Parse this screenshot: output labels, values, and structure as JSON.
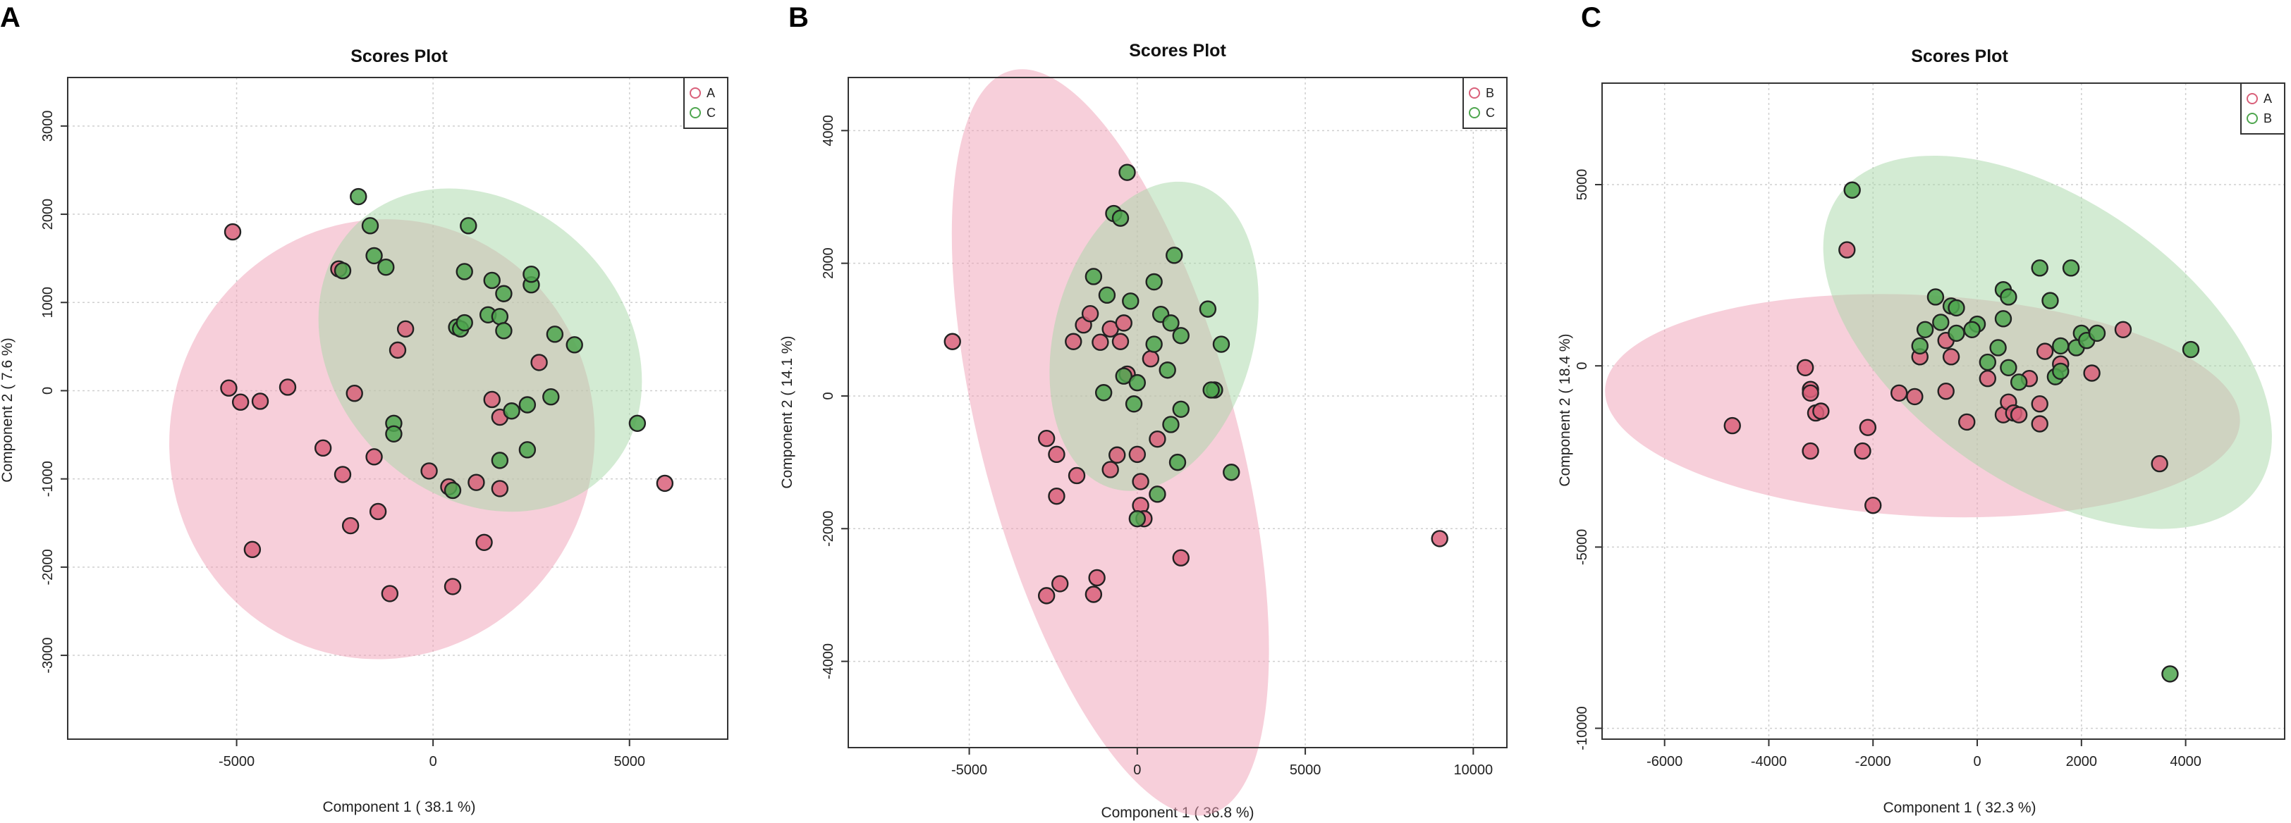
{
  "panels": [
    {
      "letter": "A",
      "title": "Scores Plot",
      "xlabel": "Component 1 ( 38.1 %)",
      "ylabel": "Component 2 ( 7.6 %)",
      "legend": [
        {
          "label": "A",
          "color": "#d9607a"
        },
        {
          "label": "C",
          "color": "#4fa64f"
        }
      ]
    },
    {
      "letter": "B",
      "title": "Scores Plot",
      "xlabel": "Component 1 ( 36.8 %)",
      "ylabel": "Component 2 ( 14.1 %)",
      "legend": [
        {
          "label": "B",
          "color": "#d9607a"
        },
        {
          "label": "C",
          "color": "#4fa64f"
        }
      ]
    },
    {
      "letter": "C",
      "title": "Scores Plot",
      "xlabel": "Component 1 ( 32.3 %)",
      "ylabel": "Component 2 ( 18.4 %)",
      "legend": [
        {
          "label": "A",
          "color": "#d9607a"
        },
        {
          "label": "B",
          "color": "#4fa64f"
        }
      ]
    }
  ],
  "chart_data": [
    {
      "type": "scatter",
      "title": "Scores Plot",
      "xlabel": "Component 1 ( 38.1 %)",
      "ylabel": "Component 2 ( 7.6 %)",
      "xlim": [
        -9300,
        7500
      ],
      "ylim": [
        -3950,
        3550
      ],
      "xticks": [
        -5000,
        0,
        5000
      ],
      "yticks": [
        -3000,
        -2000,
        -1000,
        0,
        1000,
        2000,
        3000
      ],
      "legend_position": "top-right",
      "grid": true,
      "series": [
        {
          "name": "A",
          "color": "#d9607a",
          "ellipse_fill": "#f0a0b6",
          "ellipse": {
            "cx": -1300,
            "cy": -550,
            "rx": 5400,
            "ry": 2500,
            "angle_deg": -15
          },
          "x": [
            -5100,
            -5200,
            -4900,
            -4400,
            -3700,
            -4600,
            -2800,
            -2300,
            -2100,
            -2000,
            -2400,
            -1500,
            -1400,
            -1100,
            -900,
            -700,
            -100,
            400,
            500,
            1100,
            1300,
            1500,
            1700,
            1700,
            2700,
            5900
          ],
          "y": [
            1800,
            30,
            -130,
            -120,
            40,
            -1800,
            -650,
            -950,
            -1530,
            -30,
            1380,
            -750,
            -1370,
            -2300,
            460,
            700,
            -910,
            -1090,
            -2220,
            -1040,
            -1720,
            -100,
            -300,
            -1110,
            320,
            -1050
          ]
        },
        {
          "name": "C",
          "color": "#4fa64f",
          "ellipse_fill": "#a8d8a8",
          "ellipse": {
            "cx": 1200,
            "cy": 460,
            "rx": 3700,
            "ry": 2000,
            "angle_deg": 45
          },
          "x": [
            -1900,
            -1600,
            -1500,
            -2300,
            -1200,
            -1000,
            -1000,
            600,
            700,
            800,
            800,
            900,
            1400,
            1500,
            1700,
            1800,
            1800,
            1700,
            2000,
            2400,
            2400,
            2500,
            2500,
            3000,
            3100,
            3600,
            5200,
            500
          ],
          "y": [
            2200,
            1870,
            1530,
            1360,
            1400,
            -370,
            -490,
            720,
            700,
            770,
            1350,
            1870,
            860,
            1250,
            840,
            1100,
            680,
            -790,
            -230,
            -160,
            -670,
            1200,
            1320,
            -70,
            640,
            520,
            -370,
            -1130
          ]
        }
      ]
    },
    {
      "type": "scatter",
      "title": "Scores Plot",
      "xlabel": "Component 1 ( 36.8 %)",
      "ylabel": "Component 2 ( 14.1 %)",
      "xlim": [
        -8600,
        11000
      ],
      "ylim": [
        -5300,
        4800
      ],
      "xticks": [
        -5000,
        0,
        5000,
        10000
      ],
      "yticks": [
        -4000,
        -2000,
        0,
        2000,
        4000
      ],
      "legend_position": "top-right",
      "grid": true,
      "series": [
        {
          "name": "B",
          "color": "#d9607a",
          "ellipse_fill": "#f0a0b6",
          "ellipse": {
            "cx": -800,
            "cy": -700,
            "rx": 3800,
            "ry": 5800,
            "angle_deg": 15
          },
          "x": [
            -5500,
            -2700,
            -2400,
            -2400,
            -2300,
            -2700,
            -1900,
            -1800,
            -1600,
            -1400,
            -1300,
            -1200,
            -1100,
            -800,
            -800,
            -600,
            -500,
            -400,
            -300,
            0,
            100,
            100,
            200,
            400,
            600,
            1300,
            9000
          ],
          "y": [
            820,
            -640,
            -880,
            -1510,
            -2830,
            -3010,
            820,
            -1200,
            1070,
            1240,
            -2990,
            -2740,
            810,
            1010,
            -1110,
            -890,
            820,
            1100,
            330,
            -880,
            -1290,
            -1650,
            -1850,
            560,
            -650,
            -2440,
            -2150
          ],
          "x_extra": [],
          "notes": ""
        },
        {
          "name": "C",
          "color": "#4fa64f",
          "ellipse_fill": "#a8d8a8",
          "ellipse": {
            "cx": 500,
            "cy": 900,
            "rx": 4700,
            "ry": 1500,
            "angle_deg": 75
          },
          "x": [
            -300,
            -700,
            -500,
            -1300,
            -900,
            -1000,
            -200,
            -400,
            0,
            -100,
            0,
            500,
            500,
            700,
            900,
            1000,
            1100,
            1300,
            1300,
            1000,
            1200,
            2100,
            2300,
            2500,
            2200,
            2800,
            600
          ],
          "y": [
            3370,
            2750,
            2680,
            1800,
            1520,
            50,
            1430,
            300,
            200,
            -120,
            -1850,
            1720,
            780,
            1230,
            390,
            1100,
            2120,
            910,
            -200,
            -430,
            -1000,
            1310,
            90,
            780,
            90,
            -1150,
            -1480
          ]
        }
      ]
    },
    {
      "type": "scatter",
      "title": "Scores Plot",
      "xlabel": "Component 1 ( 32.3 %)",
      "ylabel": "Component 2 ( 18.4 %)",
      "xlim": [
        -7200,
        5900
      ],
      "ylim": [
        -10300,
        7800
      ],
      "xticks": [
        -6000,
        -4000,
        -2000,
        0,
        2000,
        4000
      ],
      "yticks": [
        -10000,
        -5000,
        0,
        5000
      ],
      "legend_position": "top-right",
      "grid": true,
      "series": [
        {
          "name": "A",
          "color": "#d9607a",
          "ellipse_fill": "#f0a0b6",
          "ellipse": {
            "cx": -1050,
            "cy": -1100,
            "rx": 6100,
            "ry": 3050,
            "angle_deg": -3
          },
          "x": [
            -4700,
            -3300,
            -3200,
            -3200,
            -3100,
            -3000,
            -3200,
            -2500,
            -2200,
            -2100,
            -2000,
            -1500,
            -1200,
            -1100,
            -600,
            -500,
            -600,
            -200,
            200,
            500,
            600,
            700,
            800,
            1000,
            1200,
            1200,
            1300,
            1600,
            2200,
            2800,
            3500
          ],
          "y": [
            -1650,
            -50,
            -650,
            -750,
            -1300,
            -1250,
            -2350,
            3200,
            -2350,
            -1700,
            -3850,
            -750,
            -850,
            250,
            -700,
            250,
            700,
            -1550,
            -350,
            -1350,
            -1000,
            -1300,
            -1350,
            -350,
            -1600,
            -1050,
            400,
            50,
            -200,
            1000,
            -2700
          ]
        },
        {
          "name": "B",
          "color": "#4fa64f",
          "ellipse_fill": "#a8d8a8",
          "ellipse": {
            "cx": 1350,
            "cy": 650,
            "rx": 4900,
            "ry": 3900,
            "angle_deg": -35
          },
          "x": [
            -2400,
            -1100,
            -800,
            -700,
            -500,
            -400,
            -1000,
            -400,
            0,
            -100,
            200,
            400,
            500,
            500,
            600,
            600,
            800,
            1200,
            1400,
            1500,
            1600,
            1600,
            1800,
            1900,
            2000,
            2100,
            2300,
            3700,
            4100
          ],
          "y": [
            4850,
            550,
            1900,
            1200,
            1650,
            1600,
            1000,
            900,
            1150,
            1000,
            100,
            500,
            1300,
            2100,
            1900,
            -50,
            -450,
            2700,
            1800,
            -300,
            -150,
            550,
            2700,
            500,
            900,
            700,
            900,
            -8500,
            450
          ]
        }
      ]
    }
  ]
}
